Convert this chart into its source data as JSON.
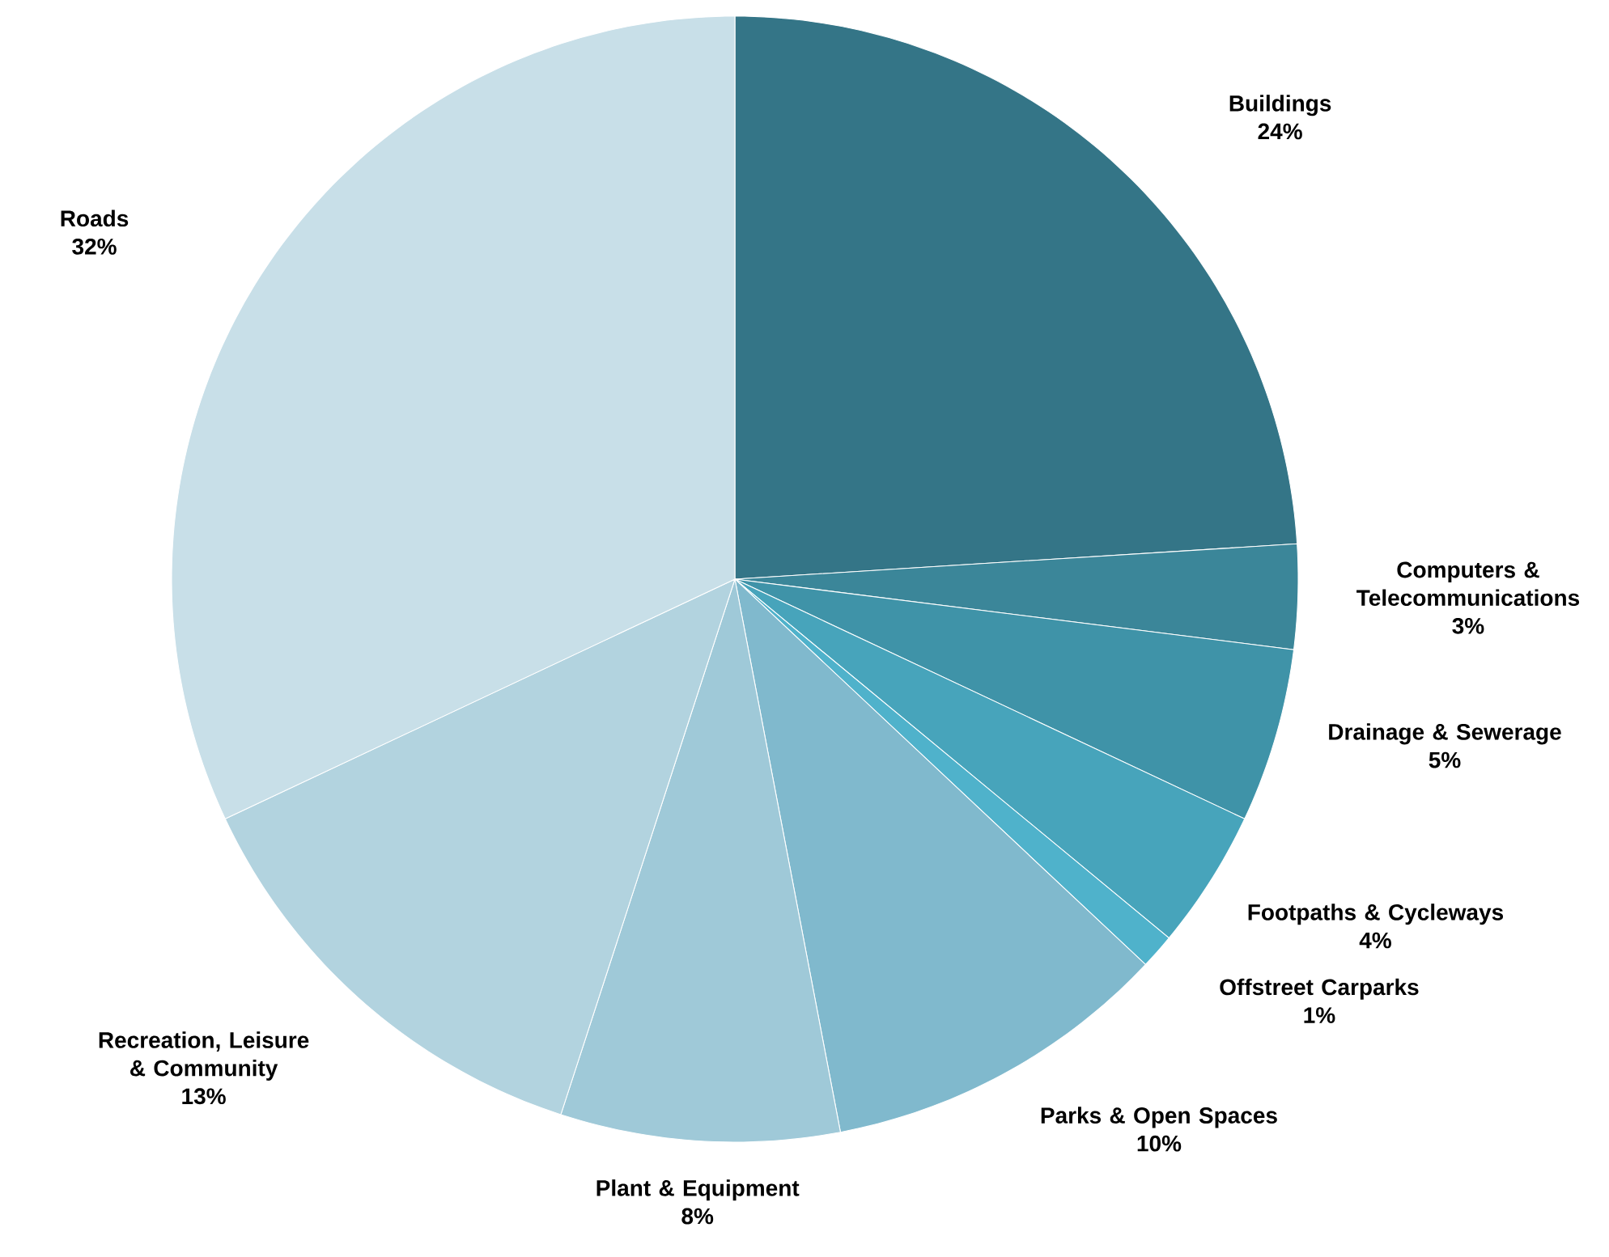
{
  "chart_data": {
    "type": "pie",
    "categories": [
      "Buildings",
      "Computers & Telecommunications",
      "Drainage & Sewerage",
      "Footpaths & Cycleways",
      "Offstreet Carparks",
      "Parks & Open Spaces",
      "Plant & Equipment",
      "Recreation, Leisure & Community",
      "Roads"
    ],
    "values": [
      24,
      3,
      5,
      4,
      1,
      10,
      8,
      13,
      32
    ],
    "value_labels": [
      "24%",
      "3%",
      "5%",
      "4%",
      "1%",
      "10%",
      "8%",
      "13%",
      "32%"
    ],
    "colors": [
      "#347587",
      "#3b8699",
      "#3f93a8",
      "#47a4bb",
      "#4fb2cb",
      "#80b9cd",
      "#9fc9d8",
      "#b2d3df",
      "#c8dfe8"
    ]
  }
}
